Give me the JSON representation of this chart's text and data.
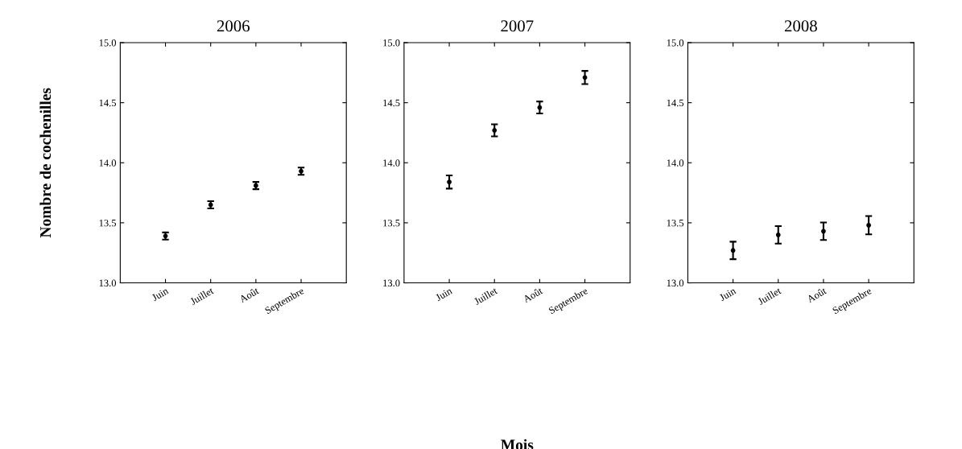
{
  "chart_data": [
    {
      "type": "scatter",
      "title": "2006",
      "ylabel": "Nombre de cochenilles",
      "categories": [
        "Juin",
        "Juillet",
        "Août",
        "Septembre"
      ],
      "values": [
        13.39,
        13.65,
        13.81,
        13.93
      ],
      "errors": [
        0.03,
        0.03,
        0.03,
        0.03
      ],
      "color": "#000000",
      "marker": "circle",
      "ylim": [
        13.0,
        15.0
      ],
      "yticks": [
        {
          "value": 13.0,
          "label": "13.0"
        },
        {
          "value": 13.5,
          "label": "13.5"
        },
        {
          "value": 14.0,
          "label": "14.0"
        },
        {
          "value": 14.5,
          "label": "14.5"
        },
        {
          "value": 15.0,
          "label": "15.0"
        }
      ],
      "grid": false
    },
    {
      "type": "scatter",
      "title": "2007",
      "xlabel": "Mois",
      "categories": [
        "Juin",
        "Juillet",
        "Août",
        "Septembre"
      ],
      "values": [
        13.84,
        14.27,
        14.46,
        14.71
      ],
      "errors": [
        0.055,
        0.05,
        0.05,
        0.055
      ],
      "color": "#000000",
      "marker": "circle",
      "ylim": [
        13.0,
        15.0
      ],
      "yticks": [
        {
          "value": 13.0,
          "label": "13.0"
        },
        {
          "value": 13.5,
          "label": "13.5"
        },
        {
          "value": 14.0,
          "label": "14.0"
        },
        {
          "value": 14.5,
          "label": "14.5"
        },
        {
          "value": 15.0,
          "label": "15.0"
        }
      ],
      "grid": false
    },
    {
      "type": "scatter",
      "title": "2008",
      "categories": [
        "Juin",
        "Juillet",
        "Août",
        "Septembre"
      ],
      "values": [
        13.27,
        13.4,
        13.43,
        13.48
      ],
      "errors": [
        0.073,
        0.073,
        0.073,
        0.076
      ],
      "color": "#000000",
      "marker": "circle",
      "ylim": [
        13.0,
        15.0
      ],
      "yticks": [
        {
          "value": 13.0,
          "label": "13.0"
        },
        {
          "value": 13.5,
          "label": "13.5"
        },
        {
          "value": 14.0,
          "label": "14.0"
        },
        {
          "value": 14.5,
          "label": "14.5"
        },
        {
          "value": 15.0,
          "label": "15.0"
        }
      ],
      "grid": false
    }
  ]
}
